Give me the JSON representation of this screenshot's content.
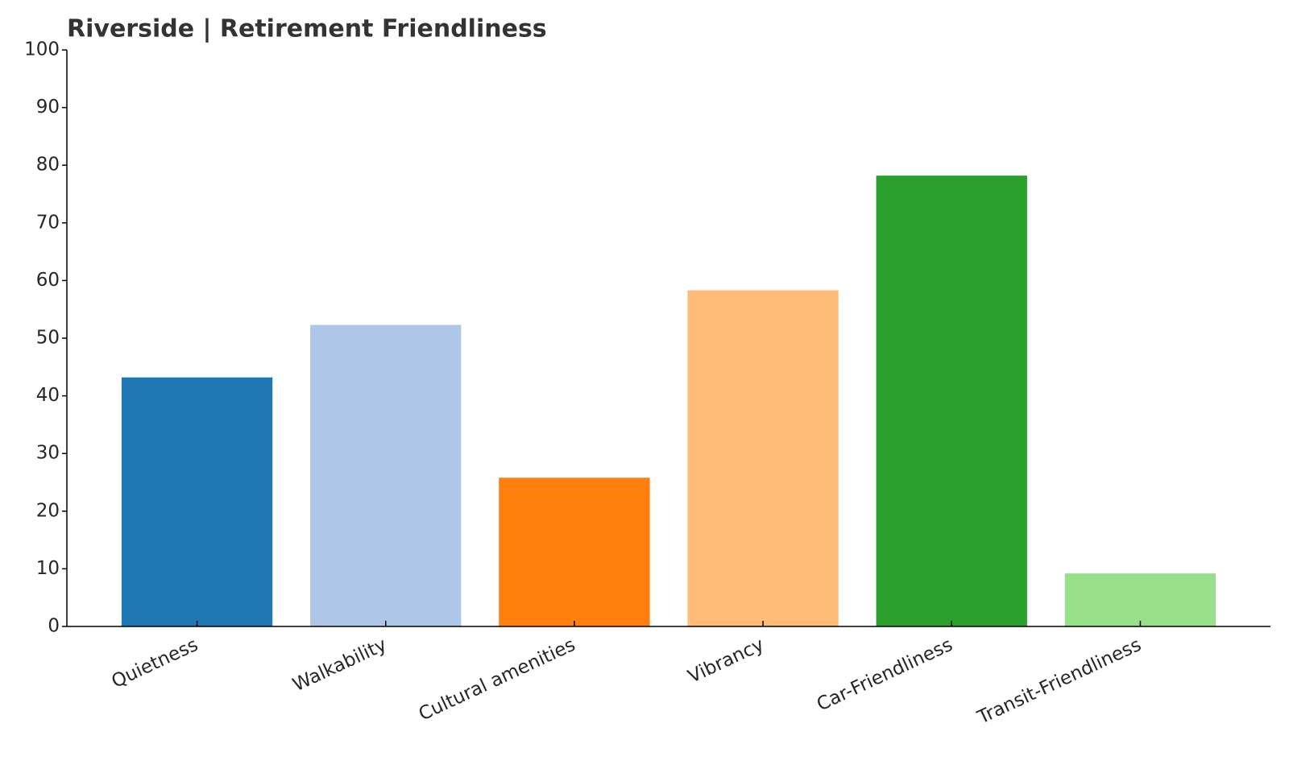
{
  "chart_data": {
    "type": "bar",
    "title": "Riverside | Retirement Friendliness",
    "categories": [
      "Quietness",
      "Walkability",
      "Cultural amenities",
      "Vibrancy",
      "Car-Friendliness",
      "Transit-Friendliness"
    ],
    "values": [
      43.2,
      52.3,
      25.8,
      58.3,
      78.2,
      9.2
    ],
    "colors": [
      "#1f77b4",
      "#aec7e8",
      "#ff7f0e",
      "#ffbb78",
      "#2ca02c",
      "#98df8a"
    ],
    "ylim": [
      0,
      100
    ],
    "yticks": [
      0,
      10,
      20,
      30,
      40,
      50,
      60,
      70,
      80,
      90,
      100
    ],
    "grid": false
  }
}
